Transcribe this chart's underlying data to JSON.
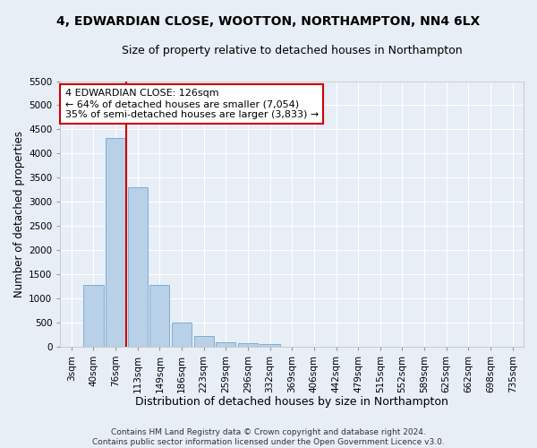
{
  "title": "4, EDWARDIAN CLOSE, WOOTTON, NORTHAMPTON, NN4 6LX",
  "subtitle": "Size of property relative to detached houses in Northampton",
  "xlabel": "Distribution of detached houses by size in Northampton",
  "ylabel": "Number of detached properties",
  "bar_color": "#b8d0e8",
  "bar_edge_color": "#7aafd4",
  "background_color": "#e8eef6",
  "grid_color": "#ffffff",
  "categories": [
    "3sqm",
    "40sqm",
    "76sqm",
    "113sqm",
    "149sqm",
    "186sqm",
    "223sqm",
    "259sqm",
    "296sqm",
    "332sqm",
    "369sqm",
    "406sqm",
    "442sqm",
    "479sqm",
    "515sqm",
    "552sqm",
    "589sqm",
    "625sqm",
    "662sqm",
    "698sqm",
    "735sqm"
  ],
  "values": [
    0,
    1270,
    4330,
    3300,
    1280,
    490,
    215,
    90,
    65,
    50,
    0,
    0,
    0,
    0,
    0,
    0,
    0,
    0,
    0,
    0,
    0
  ],
  "ylim": [
    0,
    5500
  ],
  "yticks": [
    0,
    500,
    1000,
    1500,
    2000,
    2500,
    3000,
    3500,
    4000,
    4500,
    5000,
    5500
  ],
  "vline_x_index": 2.5,
  "vline_color": "#cc0000",
  "annotation_text": "4 EDWARDIAN CLOSE: 126sqm\n← 64% of detached houses are smaller (7,054)\n35% of semi-detached houses are larger (3,833) →",
  "annotation_box_color": "#ffffff",
  "annotation_border_color": "#cc0000",
  "footer_line1": "Contains HM Land Registry data © Crown copyright and database right 2024.",
  "footer_line2": "Contains public sector information licensed under the Open Government Licence v3.0.",
  "title_fontsize": 10,
  "subtitle_fontsize": 9,
  "xlabel_fontsize": 9,
  "ylabel_fontsize": 8.5,
  "tick_fontsize": 7.5,
  "annotation_fontsize": 8,
  "footer_fontsize": 6.5
}
